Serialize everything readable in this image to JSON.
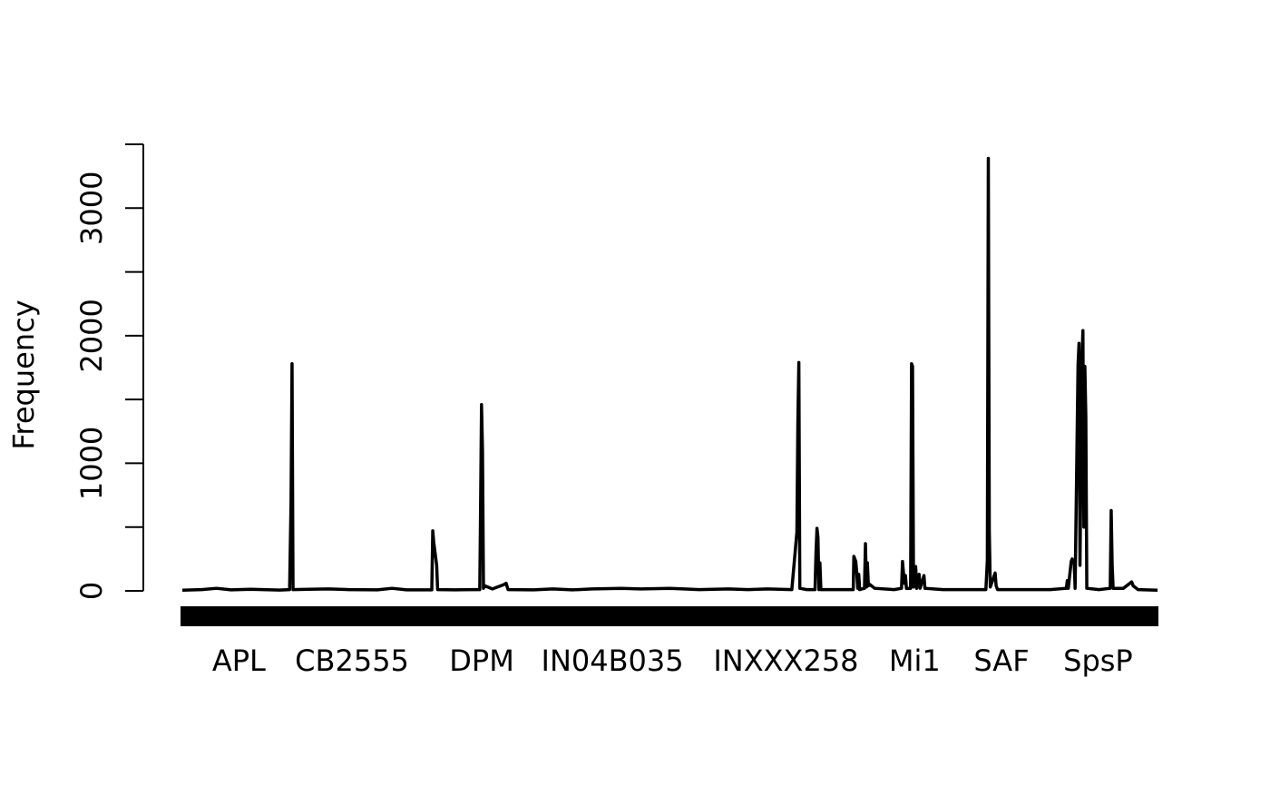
{
  "chart_data": {
    "type": "line",
    "title": "",
    "xlabel": "",
    "ylabel": "Frequency",
    "ylim": [
      0,
      3500
    ],
    "y_ticks": [
      0,
      500,
      1000,
      1500,
      2000,
      2500,
      3000,
      3500
    ],
    "y_tick_labels": [
      "0",
      "",
      "1000",
      "",
      "2000",
      "",
      "3000",
      ""
    ],
    "grid": false,
    "legend": "none",
    "x_category_labels": [
      "APL",
      "CB2555",
      "DPM",
      "IN04B035",
      "INXXX258",
      "Mi1",
      "SAF",
      "SpsP"
    ],
    "x_label_positions": [
      0.058,
      0.174,
      0.307,
      0.441,
      0.619,
      0.751,
      0.84,
      0.939
    ],
    "x_domain": [
      0,
      1
    ],
    "series": [
      {
        "values": [
          [
            0.0,
            5
          ],
          [
            0.02,
            10
          ],
          [
            0.035,
            20
          ],
          [
            0.05,
            8
          ],
          [
            0.07,
            12
          ],
          [
            0.1,
            6
          ],
          [
            0.11,
            10
          ],
          [
            0.1115,
            700
          ],
          [
            0.1125,
            1780
          ],
          [
            0.1135,
            10
          ],
          [
            0.13,
            12
          ],
          [
            0.15,
            15
          ],
          [
            0.17,
            10
          ],
          [
            0.2,
            8
          ],
          [
            0.215,
            20
          ],
          [
            0.23,
            8
          ],
          [
            0.2558,
            8
          ],
          [
            0.2568,
            470
          ],
          [
            0.2578,
            380
          ],
          [
            0.2588,
            320
          ],
          [
            0.2598,
            260
          ],
          [
            0.2608,
            200
          ],
          [
            0.2618,
            10
          ],
          [
            0.28,
            8
          ],
          [
            0.3,
            10
          ],
          [
            0.305,
            10
          ],
          [
            0.3058,
            620
          ],
          [
            0.3068,
            1460
          ],
          [
            0.3078,
            1100
          ],
          [
            0.3088,
            20
          ],
          [
            0.31,
            40
          ],
          [
            0.318,
            15
          ],
          [
            0.33,
            50
          ],
          [
            0.332,
            60
          ],
          [
            0.334,
            10
          ],
          [
            0.36,
            8
          ],
          [
            0.38,
            15
          ],
          [
            0.4,
            8
          ],
          [
            0.42,
            15
          ],
          [
            0.45,
            20
          ],
          [
            0.47,
            15
          ],
          [
            0.5,
            20
          ],
          [
            0.53,
            10
          ],
          [
            0.56,
            15
          ],
          [
            0.58,
            10
          ],
          [
            0.6,
            15
          ],
          [
            0.625,
            10
          ],
          [
            0.6302,
            460
          ],
          [
            0.6312,
            1320
          ],
          [
            0.6322,
            1790
          ],
          [
            0.6332,
            20
          ],
          [
            0.64,
            10
          ],
          [
            0.6488,
            10
          ],
          [
            0.6498,
            300
          ],
          [
            0.6508,
            490
          ],
          [
            0.6518,
            420
          ],
          [
            0.6528,
            10
          ],
          [
            0.6538,
            220
          ],
          [
            0.6548,
            10
          ],
          [
            0.67,
            10
          ],
          [
            0.688,
            10
          ],
          [
            0.6886,
            270
          ],
          [
            0.6906,
            230
          ],
          [
            0.6916,
            140
          ],
          [
            0.6926,
            20
          ],
          [
            0.6936,
            130
          ],
          [
            0.6946,
            10
          ],
          [
            0.6995,
            20
          ],
          [
            0.7005,
            370
          ],
          [
            0.7015,
            30
          ],
          [
            0.7025,
            220
          ],
          [
            0.7035,
            40
          ],
          [
            0.705,
            50
          ],
          [
            0.71,
            20
          ],
          [
            0.73,
            10
          ],
          [
            0.7375,
            20
          ],
          [
            0.7385,
            230
          ],
          [
            0.7395,
            140
          ],
          [
            0.7405,
            60
          ],
          [
            0.7415,
            120
          ],
          [
            0.7425,
            20
          ],
          [
            0.7468,
            20
          ],
          [
            0.7478,
            1780
          ],
          [
            0.7488,
            1760
          ],
          [
            0.7498,
            30
          ],
          [
            0.752,
            190
          ],
          [
            0.753,
            20
          ],
          [
            0.7555,
            130
          ],
          [
            0.7565,
            20
          ],
          [
            0.7605,
            120
          ],
          [
            0.7615,
            20
          ],
          [
            0.78,
            10
          ],
          [
            0.81,
            10
          ],
          [
            0.824,
            10
          ],
          [
            0.8255,
            240
          ],
          [
            0.8265,
            3390
          ],
          [
            0.8275,
            470
          ],
          [
            0.8285,
            30
          ],
          [
            0.8335,
            140
          ],
          [
            0.8345,
            40
          ],
          [
            0.836,
            10
          ],
          [
            0.87,
            10
          ],
          [
            0.89,
            10
          ],
          [
            0.9065,
            20
          ],
          [
            0.9075,
            80
          ],
          [
            0.9085,
            20
          ],
          [
            0.9115,
            230
          ],
          [
            0.9125,
            250
          ],
          [
            0.9135,
            220
          ],
          [
            0.9145,
            240
          ],
          [
            0.9155,
            20
          ],
          [
            0.9185,
            1770
          ],
          [
            0.9195,
            1940
          ],
          [
            0.9205,
            200
          ],
          [
            0.9225,
            1800
          ],
          [
            0.9235,
            2040
          ],
          [
            0.9245,
            500
          ],
          [
            0.9255,
            1760
          ],
          [
            0.9265,
            1360
          ],
          [
            0.9275,
            20
          ],
          [
            0.94,
            10
          ],
          [
            0.9515,
            20
          ],
          [
            0.9525,
            630
          ],
          [
            0.9535,
            200
          ],
          [
            0.9545,
            20
          ],
          [
            0.965,
            20
          ],
          [
            0.9735,
            70
          ],
          [
            0.975,
            40
          ],
          [
            0.98,
            10
          ],
          [
            1.0,
            5
          ]
        ]
      }
    ]
  }
}
